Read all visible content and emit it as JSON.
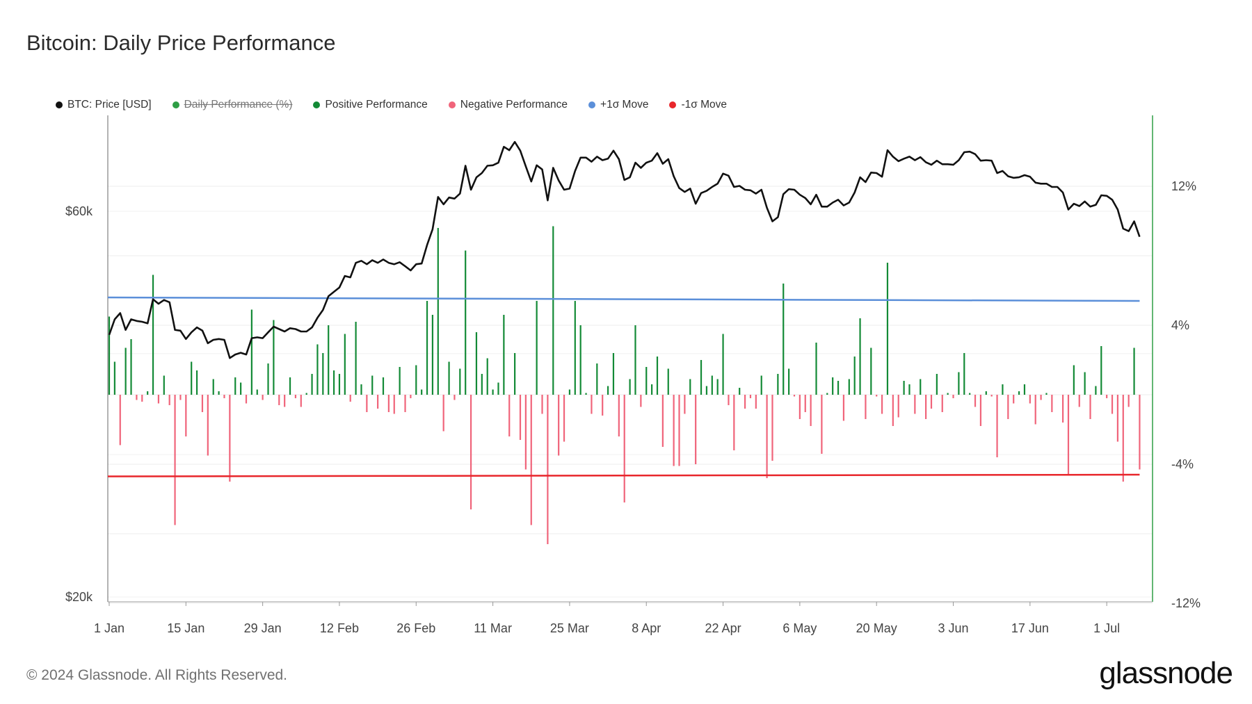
{
  "title": "Bitcoin: Daily Price Performance",
  "footer": "© 2024 Glassnode. All Rights Reserved.",
  "brand": "glassnode",
  "colors": {
    "price": "#111111",
    "positive": "#138a36",
    "negative": "#f0647a",
    "plus_sigma": "#5b8fd9",
    "minus_sigma": "#e8262b",
    "right_axis": "#2e9e45"
  },
  "legend": [
    {
      "label": "BTC: Price [USD]",
      "color": "#111111",
      "disabled": false
    },
    {
      "label": "Daily Performance (%)",
      "color": "#2e9e45",
      "disabled": true
    },
    {
      "label": "Positive Performance",
      "color": "#138a36",
      "disabled": false
    },
    {
      "label": "Negative Performance",
      "color": "#f0647a",
      "disabled": false
    },
    {
      "label": "+1σ Move",
      "color": "#5b8fd9",
      "disabled": false
    },
    {
      "label": "-1σ Move",
      "color": "#e8262b",
      "disabled": false
    }
  ],
  "chart_data": {
    "type": "line",
    "x_tick_labels": [
      "1 Jan",
      "15 Jan",
      "29 Jan",
      "12 Feb",
      "26 Feb",
      "11 Mar",
      "25 Mar",
      "8 Apr",
      "22 Apr",
      "6 May",
      "20 May",
      "3 Jun",
      "17 Jun",
      "1 Jul"
    ],
    "left_axis": {
      "tick_labels": [
        "$20k",
        "$60k"
      ],
      "scale": "log",
      "range": [
        20000,
        75000
      ]
    },
    "right_axis": {
      "tick_labels": [
        "12%",
        "4%",
        "-4%",
        "-12%"
      ],
      "range": [
        -12,
        16
      ]
    },
    "x_range_days": [
      0,
      190
    ],
    "price": [
      [
        0,
        42200
      ],
      [
        1,
        44100
      ],
      [
        2,
        44900
      ],
      [
        3,
        42800
      ],
      [
        4,
        44100
      ],
      [
        5,
        43900
      ],
      [
        6,
        43800
      ],
      [
        7,
        43600
      ],
      [
        8,
        46700
      ],
      [
        9,
        46100
      ],
      [
        10,
        46600
      ],
      [
        11,
        46300
      ],
      [
        12,
        42800
      ],
      [
        13,
        42700
      ],
      [
        14,
        41700
      ],
      [
        15,
        42500
      ],
      [
        16,
        43100
      ],
      [
        17,
        42700
      ],
      [
        18,
        41200
      ],
      [
        19,
        41600
      ],
      [
        20,
        41700
      ],
      [
        21,
        41600
      ],
      [
        22,
        39500
      ],
      [
        23,
        39900
      ],
      [
        24,
        40100
      ],
      [
        25,
        39900
      ],
      [
        26,
        41800
      ],
      [
        27,
        41900
      ],
      [
        28,
        41800
      ],
      [
        29,
        42500
      ],
      [
        30,
        43200
      ],
      [
        31,
        42900
      ],
      [
        32,
        42600
      ],
      [
        33,
        43000
      ],
      [
        34,
        42900
      ],
      [
        35,
        42600
      ],
      [
        36,
        42600
      ],
      [
        37,
        43100
      ],
      [
        38,
        44300
      ],
      [
        39,
        45300
      ],
      [
        40,
        47100
      ],
      [
        41,
        47700
      ],
      [
        42,
        48300
      ],
      [
        43,
        49900
      ],
      [
        44,
        49700
      ],
      [
        45,
        51800
      ],
      [
        46,
        52100
      ],
      [
        47,
        51600
      ],
      [
        48,
        52200
      ],
      [
        49,
        51800
      ],
      [
        50,
        52300
      ],
      [
        51,
        51800
      ],
      [
        52,
        51600
      ],
      [
        53,
        51900
      ],
      [
        54,
        51300
      ],
      [
        55,
        50700
      ],
      [
        56,
        51600
      ],
      [
        57,
        51700
      ],
      [
        58,
        54500
      ],
      [
        59,
        57000
      ],
      [
        60,
        62500
      ],
      [
        61,
        61200
      ],
      [
        62,
        62400
      ],
      [
        63,
        62200
      ],
      [
        64,
        63100
      ],
      [
        65,
        68300
      ],
      [
        66,
        63800
      ],
      [
        67,
        66100
      ],
      [
        68,
        66900
      ],
      [
        69,
        68300
      ],
      [
        70,
        68400
      ],
      [
        71,
        68900
      ],
      [
        72,
        72100
      ],
      [
        73,
        71400
      ],
      [
        74,
        73100
      ],
      [
        75,
        71300
      ],
      [
        76,
        68200
      ],
      [
        77,
        65300
      ],
      [
        78,
        68400
      ],
      [
        79,
        67600
      ],
      [
        80,
        61900
      ],
      [
        81,
        67900
      ],
      [
        82,
        65500
      ],
      [
        83,
        63800
      ],
      [
        84,
        64000
      ],
      [
        85,
        67300
      ],
      [
        86,
        69900
      ],
      [
        87,
        69900
      ],
      [
        88,
        69100
      ],
      [
        89,
        70100
      ],
      [
        90,
        69400
      ],
      [
        91,
        69700
      ],
      [
        92,
        71300
      ],
      [
        93,
        69600
      ],
      [
        94,
        65600
      ],
      [
        95,
        66100
      ],
      [
        96,
        68900
      ],
      [
        97,
        67900
      ],
      [
        98,
        68900
      ],
      [
        99,
        69300
      ],
      [
        100,
        70800
      ],
      [
        101,
        68700
      ],
      [
        102,
        69600
      ],
      [
        103,
        66300
      ],
      [
        104,
        64100
      ],
      [
        105,
        63400
      ],
      [
        106,
        64000
      ],
      [
        107,
        61300
      ],
      [
        108,
        63200
      ],
      [
        109,
        63600
      ],
      [
        110,
        64300
      ],
      [
        111,
        64900
      ],
      [
        112,
        66800
      ],
      [
        113,
        66400
      ],
      [
        114,
        64300
      ],
      [
        115,
        64500
      ],
      [
        116,
        63800
      ],
      [
        117,
        63700
      ],
      [
        118,
        63100
      ],
      [
        119,
        63800
      ],
      [
        120,
        60600
      ],
      [
        121,
        58300
      ],
      [
        122,
        59000
      ],
      [
        123,
        63000
      ],
      [
        124,
        63900
      ],
      [
        125,
        63800
      ],
      [
        126,
        62900
      ],
      [
        127,
        62300
      ],
      [
        128,
        61200
      ],
      [
        129,
        62900
      ],
      [
        130,
        60800
      ],
      [
        131,
        60800
      ],
      [
        132,
        61500
      ],
      [
        133,
        62000
      ],
      [
        134,
        61000
      ],
      [
        135,
        61500
      ],
      [
        136,
        63300
      ],
      [
        137,
        66100
      ],
      [
        138,
        65200
      ],
      [
        139,
        67000
      ],
      [
        140,
        66900
      ],
      [
        141,
        66200
      ],
      [
        142,
        71400
      ],
      [
        143,
        70100
      ],
      [
        144,
        69200
      ],
      [
        145,
        69700
      ],
      [
        146,
        70100
      ],
      [
        147,
        69400
      ],
      [
        148,
        70000
      ],
      [
        149,
        69000
      ],
      [
        150,
        68500
      ],
      [
        151,
        69300
      ],
      [
        152,
        68600
      ],
      [
        153,
        68600
      ],
      [
        154,
        68500
      ],
      [
        155,
        69400
      ],
      [
        156,
        71000
      ],
      [
        157,
        71100
      ],
      [
        158,
        70600
      ],
      [
        159,
        69300
      ],
      [
        160,
        69400
      ],
      [
        161,
        69300
      ],
      [
        162,
        66900
      ],
      [
        163,
        67300
      ],
      [
        164,
        66300
      ],
      [
        165,
        66000
      ],
      [
        166,
        66100
      ],
      [
        167,
        66500
      ],
      [
        168,
        66200
      ],
      [
        169,
        65100
      ],
      [
        170,
        64900
      ],
      [
        171,
        64900
      ],
      [
        172,
        64300
      ],
      [
        173,
        64300
      ],
      [
        174,
        63300
      ],
      [
        175,
        60300
      ],
      [
        176,
        61300
      ],
      [
        177,
        60900
      ],
      [
        178,
        61700
      ],
      [
        179,
        60800
      ],
      [
        180,
        61100
      ],
      [
        181,
        62800
      ],
      [
        182,
        62700
      ],
      [
        183,
        62000
      ],
      [
        184,
        60300
      ],
      [
        185,
        57100
      ],
      [
        186,
        56700
      ],
      [
        187,
        58300
      ],
      [
        188,
        55800
      ]
    ],
    "daily_performance_pct": [
      [
        0,
        4.5
      ],
      [
        1,
        1.9
      ],
      [
        2,
        -2.9
      ],
      [
        3,
        2.7
      ],
      [
        4,
        3.2
      ],
      [
        5,
        -0.3
      ],
      [
        6,
        -0.4
      ],
      [
        7,
        0.2
      ],
      [
        8,
        6.9
      ],
      [
        9,
        -0.5
      ],
      [
        10,
        1.1
      ],
      [
        11,
        -0.6
      ],
      [
        12,
        -7.5
      ],
      [
        13,
        -0.3
      ],
      [
        14,
        -2.4
      ],
      [
        15,
        1.9
      ],
      [
        16,
        1.4
      ],
      [
        17,
        -1.0
      ],
      [
        18,
        -3.5
      ],
      [
        19,
        0.9
      ],
      [
        20,
        0.2
      ],
      [
        21,
        -0.2
      ],
      [
        22,
        -5.0
      ],
      [
        23,
        1.0
      ],
      [
        24,
        0.7
      ],
      [
        25,
        -0.5
      ],
      [
        26,
        4.9
      ],
      [
        27,
        0.3
      ],
      [
        28,
        -0.3
      ],
      [
        29,
        1.8
      ],
      [
        30,
        4.3
      ],
      [
        31,
        -0.6
      ],
      [
        32,
        -0.7
      ],
      [
        33,
        1.0
      ],
      [
        34,
        -0.2
      ],
      [
        35,
        -0.7
      ],
      [
        36,
        0.1
      ],
      [
        37,
        1.2
      ],
      [
        38,
        2.9
      ],
      [
        39,
        2.4
      ],
      [
        40,
        4.0
      ],
      [
        41,
        1.4
      ],
      [
        42,
        1.2
      ],
      [
        43,
        3.5
      ],
      [
        44,
        -0.4
      ],
      [
        45,
        4.2
      ],
      [
        46,
        0.6
      ],
      [
        47,
        -1.0
      ],
      [
        48,
        1.1
      ],
      [
        49,
        -0.8
      ],
      [
        50,
        1.0
      ],
      [
        51,
        -1.0
      ],
      [
        52,
        -1.1
      ],
      [
        53,
        1.6
      ],
      [
        54,
        -1.0
      ],
      [
        55,
        -0.2
      ],
      [
        56,
        1.7
      ],
      [
        57,
        0.3
      ],
      [
        58,
        5.4
      ],
      [
        59,
        4.6
      ],
      [
        60,
        9.6
      ],
      [
        61,
        -2.1
      ],
      [
        62,
        1.9
      ],
      [
        63,
        -0.3
      ],
      [
        64,
        1.5
      ],
      [
        65,
        8.3
      ],
      [
        66,
        -6.6
      ],
      [
        67,
        3.6
      ],
      [
        68,
        1.2
      ],
      [
        69,
        2.1
      ],
      [
        70,
        0.3
      ],
      [
        71,
        0.7
      ],
      [
        72,
        4.6
      ],
      [
        73,
        -2.4
      ],
      [
        74,
        2.4
      ],
      [
        75,
        -2.6
      ],
      [
        76,
        -4.3
      ],
      [
        77,
        -7.5
      ],
      [
        78,
        5.4
      ],
      [
        79,
        -1.1
      ],
      [
        80,
        -8.6
      ],
      [
        81,
        9.7
      ],
      [
        82,
        -3.5
      ],
      [
        83,
        -2.7
      ],
      [
        84,
        0.3
      ],
      [
        85,
        5.4
      ],
      [
        86,
        4.0
      ],
      [
        87,
        0.1
      ],
      [
        88,
        -1.1
      ],
      [
        89,
        1.8
      ],
      [
        90,
        -1.2
      ],
      [
        91,
        0.5
      ],
      [
        92,
        2.4
      ],
      [
        93,
        -2.4
      ],
      [
        94,
        -6.2
      ],
      [
        95,
        0.9
      ],
      [
        96,
        4.0
      ],
      [
        97,
        -0.7
      ],
      [
        98,
        1.6
      ],
      [
        99,
        0.6
      ],
      [
        100,
        2.2
      ],
      [
        101,
        -3.0
      ],
      [
        102,
        1.5
      ],
      [
        103,
        -4.1
      ],
      [
        104,
        -4.1
      ],
      [
        105,
        -1.1
      ],
      [
        106,
        0.9
      ],
      [
        107,
        -4.0
      ],
      [
        108,
        2.0
      ],
      [
        109,
        0.5
      ],
      [
        110,
        1.1
      ],
      [
        111,
        0.9
      ],
      [
        112,
        3.5
      ],
      [
        113,
        -0.6
      ],
      [
        114,
        -3.2
      ],
      [
        115,
        0.4
      ],
      [
        116,
        -0.8
      ],
      [
        117,
        -0.2
      ],
      [
        118,
        -0.8
      ],
      [
        119,
        1.1
      ],
      [
        120,
        -4.8
      ],
      [
        121,
        -3.8
      ],
      [
        122,
        1.2
      ],
      [
        123,
        6.4
      ],
      [
        124,
        1.5
      ],
      [
        125,
        -0.1
      ],
      [
        126,
        -1.4
      ],
      [
        127,
        -1.0
      ],
      [
        128,
        -1.8
      ],
      [
        129,
        3.0
      ],
      [
        130,
        -3.4
      ],
      [
        131,
        0.1
      ],
      [
        132,
        1.0
      ],
      [
        133,
        0.8
      ],
      [
        134,
        -1.5
      ],
      [
        135,
        0.9
      ],
      [
        136,
        2.2
      ],
      [
        137,
        4.4
      ],
      [
        138,
        -1.4
      ],
      [
        139,
        2.7
      ],
      [
        140,
        -0.1
      ],
      [
        141,
        -1.1
      ],
      [
        142,
        7.6
      ],
      [
        143,
        -1.8
      ],
      [
        144,
        -1.3
      ],
      [
        145,
        0.8
      ],
      [
        146,
        0.6
      ],
      [
        147,
        -1.1
      ],
      [
        148,
        0.9
      ],
      [
        149,
        -1.4
      ],
      [
        150,
        -0.8
      ],
      [
        151,
        1.2
      ],
      [
        152,
        -1.0
      ],
      [
        153,
        0.1
      ],
      [
        154,
        -0.2
      ],
      [
        155,
        1.3
      ],
      [
        156,
        2.4
      ],
      [
        157,
        0.1
      ],
      [
        158,
        -0.7
      ],
      [
        159,
        -1.8
      ],
      [
        160,
        0.2
      ],
      [
        161,
        -0.1
      ],
      [
        162,
        -3.6
      ],
      [
        163,
        0.6
      ],
      [
        164,
        -1.4
      ],
      [
        165,
        -0.5
      ],
      [
        166,
        0.2
      ],
      [
        167,
        0.6
      ],
      [
        168,
        -0.5
      ],
      [
        169,
        -1.7
      ],
      [
        170,
        -0.3
      ],
      [
        171,
        0.1
      ],
      [
        172,
        -1.0
      ],
      [
        173,
        0.0
      ],
      [
        174,
        -1.6
      ],
      [
        175,
        -4.6
      ],
      [
        176,
        1.7
      ],
      [
        177,
        -0.7
      ],
      [
        178,
        1.3
      ],
      [
        179,
        -1.4
      ],
      [
        180,
        0.5
      ],
      [
        181,
        2.8
      ],
      [
        182,
        -0.2
      ],
      [
        183,
        -1.1
      ],
      [
        184,
        -2.7
      ],
      [
        185,
        -5.0
      ],
      [
        186,
        -0.7
      ],
      [
        187,
        2.7
      ],
      [
        188,
        -4.3
      ]
    ],
    "plus_sigma": [
      [
        0,
        5.6
      ],
      [
        188,
        5.4
      ]
    ],
    "minus_sigma": [
      [
        0,
        -4.7
      ],
      [
        188,
        -4.6
      ]
    ],
    "grid": true,
    "legend_position": "top-left"
  }
}
